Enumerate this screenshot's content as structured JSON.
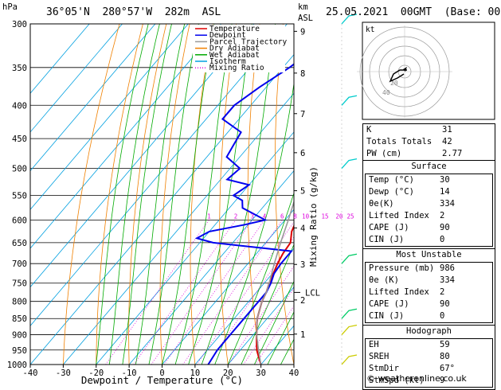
{
  "header": {
    "hpa_label": "hPa",
    "location": "36°05'N  280°57'W  282m  ASL",
    "km_label": "km",
    "asl_label": "ASL",
    "datetime": "25.05.2021  00GMT  (Base: 00)"
  },
  "chart_data": {
    "type": "line",
    "xlabel": "Dewpoint / Temperature (°C)",
    "ylabel_right": "Mixing Ratio (g/kg)",
    "x_ticks": [
      -40,
      -30,
      -20,
      -10,
      0,
      10,
      20,
      30,
      40
    ],
    "xlim": [
      -40,
      40
    ],
    "pressure_ticks": [
      300,
      350,
      400,
      450,
      500,
      550,
      600,
      650,
      700,
      750,
      800,
      850,
      900,
      950,
      1000
    ],
    "ylim": [
      1000,
      300
    ],
    "y_scale": "log",
    "skew": "skew-T",
    "km_ticks": [
      {
        "label": "9",
        "p": 308
      },
      {
        "label": "8",
        "p": 357
      },
      {
        "label": "7",
        "p": 412
      },
      {
        "label": "6",
        "p": 473
      },
      {
        "label": "5",
        "p": 541
      },
      {
        "label": "4",
        "p": 617
      },
      {
        "label": "3",
        "p": 702
      },
      {
        "label": "2",
        "p": 796
      },
      {
        "label": "1",
        "p": 898
      }
    ],
    "lcl": {
      "label": "LCL",
      "p": 775
    },
    "mixing_ratio_labels": [
      "1",
      "2",
      "3",
      "4",
      "6",
      "8",
      "10",
      "15",
      "20",
      "25"
    ],
    "legend": [
      {
        "name": "Temperature",
        "color": "#dd0000"
      },
      {
        "name": "Dewpoint",
        "color": "#0000ee"
      },
      {
        "name": "Parcel Trajectory",
        "color": "#999999"
      },
      {
        "name": "Dry Adiabat",
        "color": "#f08000"
      },
      {
        "name": "Wet Adiabat",
        "color": "#00aa00"
      },
      {
        "name": "Isotherm",
        "color": "#00a0e0"
      },
      {
        "name": "Mixing Ratio",
        "color": "#dd00dd"
      }
    ],
    "series": [
      {
        "name": "Temperature",
        "color": "#dd0000",
        "points": [
          [
            1000,
            30
          ],
          [
            975,
            27.5
          ],
          [
            950,
            25
          ],
          [
            925,
            23
          ],
          [
            900,
            21
          ],
          [
            875,
            19
          ],
          [
            850,
            17
          ],
          [
            800,
            14
          ],
          [
            775,
            13
          ],
          [
            750,
            11.5
          ],
          [
            700,
            9
          ],
          [
            675,
            8
          ],
          [
            650,
            7.5
          ],
          [
            625,
            5
          ],
          [
            600,
            3.5
          ],
          [
            575,
            0.5
          ],
          [
            550,
            -2.5
          ],
          [
            525,
            -5
          ],
          [
            500,
            -8
          ],
          [
            475,
            -11.5
          ],
          [
            450,
            -14.5
          ],
          [
            425,
            -17.5
          ],
          [
            400,
            -20.5
          ],
          [
            375,
            -24
          ],
          [
            350,
            -29
          ],
          [
            325,
            -33.5
          ],
          [
            300,
            -38
          ]
        ]
      },
      {
        "name": "Dewpoint",
        "color": "#0000ee",
        "points": [
          [
            1000,
            14
          ],
          [
            950,
            13
          ],
          [
            900,
            13
          ],
          [
            850,
            13
          ],
          [
            800,
            13
          ],
          [
            775,
            13
          ],
          [
            750,
            12
          ],
          [
            725,
            10.5
          ],
          [
            700,
            10
          ],
          [
            685,
            10
          ],
          [
            670,
            10
          ],
          [
            660,
            -3
          ],
          [
            650,
            -16
          ],
          [
            640,
            -22
          ],
          [
            625,
            -20
          ],
          [
            610,
            -11
          ],
          [
            600,
            -6
          ],
          [
            590,
            -10
          ],
          [
            575,
            -16
          ],
          [
            560,
            -18
          ],
          [
            550,
            -22
          ],
          [
            530,
            -20
          ],
          [
            520,
            -28
          ],
          [
            500,
            -27
          ],
          [
            480,
            -34
          ],
          [
            460,
            -35
          ],
          [
            440,
            -36
          ],
          [
            420,
            -45
          ],
          [
            400,
            -45
          ],
          [
            375,
            -42
          ],
          [
            350,
            -38
          ],
          [
            325,
            -35
          ],
          [
            300,
            -38
          ]
        ]
      },
      {
        "name": "Parcel Trajectory",
        "color": "#999999",
        "points": [
          [
            1000,
            30
          ],
          [
            950,
            25.5
          ],
          [
            900,
            21
          ],
          [
            850,
            17
          ],
          [
            800,
            14
          ],
          [
            775,
            13
          ],
          [
            750,
            11.5
          ],
          [
            700,
            8
          ],
          [
            650,
            4.5
          ],
          [
            600,
            1
          ],
          [
            550,
            -3
          ],
          [
            500,
            -7.5
          ],
          [
            450,
            -13
          ],
          [
            400,
            -19
          ],
          [
            350,
            -26
          ],
          [
            300,
            -35
          ]
        ]
      }
    ],
    "wind_barbs_p": [
      1000,
      900,
      850,
      700,
      500,
      400,
      300
    ],
    "hodograph": {
      "label": "kt",
      "ring_labels": [
        "20",
        "40"
      ]
    }
  },
  "stats": {
    "general": [
      {
        "label": "K",
        "value": "31"
      },
      {
        "label": "Totals Totals",
        "value": "42"
      },
      {
        "label": "PW (cm)",
        "value": "2.77"
      }
    ],
    "surface": {
      "title": "Surface",
      "rows": [
        {
          "label": "Temp (°C)",
          "value": "30"
        },
        {
          "label": "Dewp (°C)",
          "value": "14"
        },
        {
          "label": "θe(K)",
          "value": "334"
        },
        {
          "label": "Lifted Index",
          "value": "2"
        },
        {
          "label": "CAPE (J)",
          "value": "90"
        },
        {
          "label": "CIN (J)",
          "value": "0"
        }
      ]
    },
    "unstable": {
      "title": "Most Unstable",
      "rows": [
        {
          "label": "Pressure (mb)",
          "value": "986"
        },
        {
          "label": "θe (K)",
          "value": "334"
        },
        {
          "label": "Lifted Index",
          "value": "2"
        },
        {
          "label": "CAPE (J)",
          "value": "90"
        },
        {
          "label": "CIN (J)",
          "value": "0"
        }
      ]
    },
    "hodograph": {
      "title": "Hodograph",
      "rows": [
        {
          "label": "EH",
          "value": "59"
        },
        {
          "label": "SREH",
          "value": "80"
        },
        {
          "label": "StmDir",
          "value": "67°"
        },
        {
          "label": "StmSpd (kt)",
          "value": "9"
        }
      ]
    }
  },
  "footer": "© weatheronline.co.uk"
}
